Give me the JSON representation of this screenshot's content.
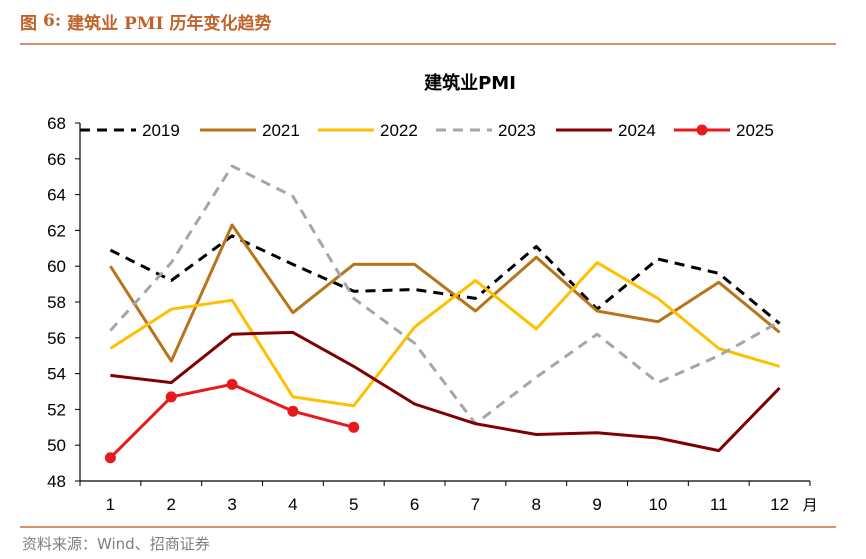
{
  "header": {
    "prefix": "图",
    "number": "6:",
    "title": "建筑业 PMI 历年变化趋势"
  },
  "source": "资料来源：Wind、招商证券",
  "chart_data": {
    "type": "line",
    "title": "建筑业PMI",
    "xlabel": "月",
    "ylabel": "",
    "categories": [
      "1",
      "2",
      "3",
      "4",
      "5",
      "6",
      "7",
      "8",
      "9",
      "10",
      "11",
      "12"
    ],
    "ylim": [
      48,
      68
    ],
    "yticks": [
      48,
      50,
      52,
      54,
      56,
      58,
      60,
      62,
      64,
      66,
      68
    ],
    "grid": false,
    "legend_position": "top",
    "series": [
      {
        "name": "2019",
        "color": "#000000",
        "style": "dashed",
        "markers": false,
        "values": [
          60.9,
          59.2,
          61.7,
          60.1,
          58.6,
          58.7,
          58.2,
          61.1,
          57.6,
          60.4,
          59.6,
          56.8
        ]
      },
      {
        "name": "2021",
        "color": "#b8741a",
        "style": "solid",
        "markers": false,
        "values": [
          60.0,
          54.7,
          62.3,
          57.4,
          60.1,
          60.1,
          57.5,
          60.5,
          57.5,
          56.9,
          59.1,
          56.3
        ]
      },
      {
        "name": "2022",
        "color": "#ffc000",
        "style": "solid",
        "markers": false,
        "values": [
          55.4,
          57.6,
          58.1,
          52.7,
          52.2,
          56.6,
          59.2,
          56.5,
          60.2,
          58.2,
          55.4,
          54.4
        ]
      },
      {
        "name": "2023",
        "color": "#a6a6a6",
        "style": "dashed",
        "markers": false,
        "values": [
          56.4,
          60.2,
          65.6,
          63.9,
          58.2,
          55.7,
          51.2,
          53.8,
          56.2,
          53.5,
          55.0,
          56.9
        ]
      },
      {
        "name": "2024",
        "color": "#7f0000",
        "style": "solid",
        "markers": false,
        "values": [
          53.9,
          53.5,
          56.2,
          56.3,
          54.4,
          52.3,
          51.2,
          50.6,
          50.7,
          50.4,
          49.7,
          53.2
        ]
      },
      {
        "name": "2025",
        "color": "#e8191d",
        "style": "solid",
        "markers": true,
        "values": [
          49.3,
          52.7,
          53.4,
          51.9,
          51.0,
          null,
          null,
          null,
          null,
          null,
          null,
          null
        ]
      }
    ]
  }
}
